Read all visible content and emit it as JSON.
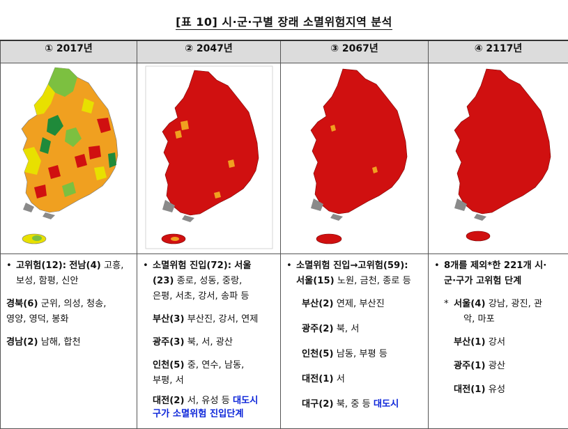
{
  "title": "[표 10] 시·군·구별 장래 소멸위험지역 분석",
  "columns": [
    {
      "label": "① 2017년"
    },
    {
      "label": "② 2047년"
    },
    {
      "label": "③ 2067년"
    },
    {
      "label": "④ 2117년"
    }
  ],
  "col1": {
    "bullet": "•",
    "l1_b": "고위험(12):",
    "l1_b2": "전남(4)",
    "l1_t": " 고흥,",
    "l1_t2": "보성, 함평, 신안",
    "l2_b": "경북(6)",
    "l2_t": " 군위, 의성, 청송,",
    "l2_t2": "영양, 영덕, 봉화",
    "l3_b": "경남(2)",
    "l3_t": " 남해, 합천"
  },
  "col2": {
    "bullet": "•",
    "l1_b": "소멸위험 진입(72):",
    "l1_b2": "서울",
    "l1_b3": "(23)",
    "l1_t": " 종로, 성동, 중랑,",
    "l1_t2": "은평, 서초, 강서, 송파 등",
    "l2_b": "부산(3)",
    "l2_t": " 부산진, 강서, 연제",
    "l3_b": "광주(3)",
    "l3_t": " 북, 서, 광산",
    "l4_b": "인천(5)",
    "l4_t": " 중, 연수, 남동,",
    "l4_t2": "부평, 서",
    "l5_b": "대전(2)",
    "l5_t": " 서, 유성 등 ",
    "l5_blue": "대도시",
    "l5_blue2": "구가 소멸위험 진입단계"
  },
  "col3": {
    "bullet": "•",
    "l1_b": "소멸위험 진입→고위험(59):",
    "l1_b2": "서울(15)",
    "l1_t": " 노원, 금천, 종로 등",
    "l2_b": "부산(2)",
    "l2_t": " 연제, 부산진",
    "l3_b": "광주(2)",
    "l3_t": " 북, 서",
    "l4_b": "인천(5)",
    "l4_t": " 남동, 부평 등",
    "l5_b": "대전(1)",
    "l5_t": " 서",
    "l6_b": "대구(2)",
    "l6_t": " 북, 중 등 ",
    "l6_blue": "대도시"
  },
  "col4": {
    "bullet": "•",
    "l1_b": "8개를 제외*한 221개 시·",
    "l1_b2": "군·구가 고위험 단계",
    "star": "*",
    "l2_b": "서울(4)",
    "l2_t": " 강남, 광진, 관",
    "l2_t2": "악, 마포",
    "l3_b": "부산(1)",
    "l3_t": " 강서",
    "l4_b": "광주(1)",
    "l4_t": " 광산",
    "l5_b": "대전(1)",
    "l5_t": " 유성"
  },
  "colors": {
    "high_risk_red": "#d01010",
    "caution_orange": "#f0a020",
    "normal_yellow": "#e8e000",
    "low_risk_green": "#7cc040",
    "very_low_green": "#1f8a3a",
    "gray_islands": "#8a8a8a"
  }
}
